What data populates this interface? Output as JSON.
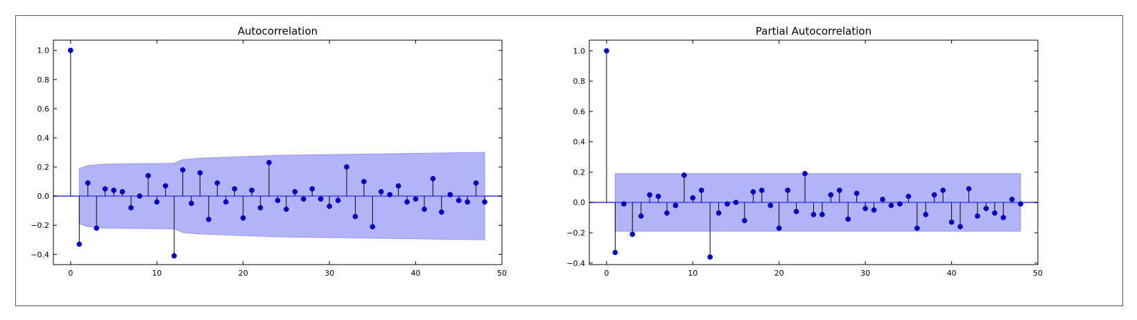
{
  "colors": {
    "marker": "#0000c0",
    "stem": "#000000",
    "band": "#b3b3f7",
    "band_edge": "#9999ee",
    "zero_line": "#5b5bf5"
  },
  "chart_data": [
    {
      "type": "stem",
      "title": "Autocorrelation",
      "xlabel": "",
      "ylabel": "",
      "xlim": [
        -2,
        50
      ],
      "ylim": [
        -0.47,
        1.07
      ],
      "xticks": [
        0,
        10,
        20,
        30,
        40,
        50
      ],
      "xtick_labels": [
        "0",
        "10",
        "20",
        "30",
        "40",
        "50"
      ],
      "yticks": [
        -0.4,
        -0.2,
        0.0,
        0.2,
        0.4,
        0.6,
        0.8,
        1.0
      ],
      "ytick_labels": [
        "−0.4",
        "−0.2",
        "0.0",
        "0.2",
        "0.4",
        "0.6",
        "0.8",
        "1.0"
      ],
      "grid": false,
      "lags": [
        0,
        1,
        2,
        3,
        4,
        5,
        6,
        7,
        8,
        9,
        10,
        11,
        12,
        13,
        14,
        15,
        16,
        17,
        18,
        19,
        20,
        21,
        22,
        23,
        24,
        25,
        26,
        27,
        28,
        29,
        30,
        31,
        32,
        33,
        34,
        35,
        36,
        37,
        38,
        39,
        40,
        41,
        42,
        43,
        44,
        45,
        46,
        47,
        48
      ],
      "values": [
        1.0,
        -0.33,
        0.09,
        -0.22,
        0.05,
        0.04,
        0.03,
        -0.08,
        0.0,
        0.14,
        -0.04,
        0.07,
        -0.41,
        0.18,
        -0.05,
        0.16,
        -0.16,
        0.09,
        -0.04,
        0.05,
        -0.15,
        0.04,
        -0.08,
        0.23,
        -0.03,
        -0.09,
        0.03,
        -0.02,
        0.05,
        -0.02,
        -0.07,
        -0.03,
        0.2,
        -0.14,
        0.1,
        -0.21,
        0.03,
        0.01,
        0.07,
        -0.04,
        -0.02,
        -0.09,
        0.12,
        -0.11,
        0.01,
        -0.03,
        -0.04,
        0.09,
        -0.04
      ],
      "confidence_band": {
        "lags": [
          1,
          2,
          4,
          12,
          13,
          15,
          24,
          36,
          48
        ],
        "upper": [
          0.19,
          0.21,
          0.22,
          0.225,
          0.25,
          0.26,
          0.28,
          0.29,
          0.3
        ]
      }
    },
    {
      "type": "stem",
      "title": "Partial Autocorrelation",
      "xlabel": "",
      "ylabel": "",
      "xlim": [
        -2,
        50
      ],
      "ylim": [
        -0.41,
        1.07
      ],
      "xticks": [
        0,
        10,
        20,
        30,
        40,
        50
      ],
      "xtick_labels": [
        "0",
        "10",
        "20",
        "30",
        "40",
        "50"
      ],
      "yticks": [
        -0.4,
        -0.2,
        0.0,
        0.2,
        0.4,
        0.6,
        0.8,
        1.0
      ],
      "ytick_labels": [
        "−0.4",
        "−0.2",
        "0.0",
        "0.2",
        "0.4",
        "0.6",
        "0.8",
        "1.0"
      ],
      "grid": false,
      "lags": [
        0,
        1,
        2,
        3,
        4,
        5,
        6,
        7,
        8,
        9,
        10,
        11,
        12,
        13,
        14,
        15,
        16,
        17,
        18,
        19,
        20,
        21,
        22,
        23,
        24,
        25,
        26,
        27,
        28,
        29,
        30,
        31,
        32,
        33,
        34,
        35,
        36,
        37,
        38,
        39,
        40,
        41,
        42,
        43,
        44,
        45,
        46,
        47,
        48
      ],
      "values": [
        1.0,
        -0.33,
        -0.01,
        -0.21,
        -0.09,
        0.05,
        0.04,
        -0.07,
        -0.02,
        0.18,
        0.03,
        0.08,
        -0.36,
        -0.07,
        -0.01,
        0.0,
        -0.12,
        0.07,
        0.08,
        -0.02,
        -0.17,
        0.08,
        -0.06,
        0.19,
        -0.08,
        -0.08,
        0.05,
        0.08,
        -0.11,
        0.06,
        -0.04,
        -0.05,
        0.02,
        -0.02,
        -0.01,
        0.04,
        -0.17,
        -0.08,
        0.05,
        0.08,
        -0.13,
        -0.16,
        0.09,
        -0.09,
        -0.04,
        -0.07,
        -0.1,
        0.02,
        -0.01
      ],
      "confidence_band": {
        "lags": [
          1,
          48
        ],
        "upper": [
          0.19,
          0.19
        ]
      }
    }
  ]
}
